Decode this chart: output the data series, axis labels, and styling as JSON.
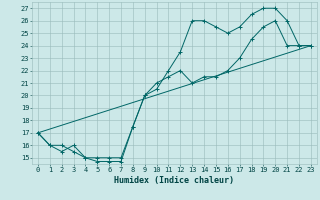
{
  "title": "",
  "xlabel": "Humidex (Indice chaleur)",
  "bg_color": "#cce8e8",
  "line_color": "#006666",
  "xlim": [
    -0.5,
    23.5
  ],
  "ylim": [
    14.5,
    27.5
  ],
  "yticks": [
    15,
    16,
    17,
    18,
    19,
    20,
    21,
    22,
    23,
    24,
    25,
    26,
    27
  ],
  "xticks": [
    0,
    1,
    2,
    3,
    4,
    5,
    6,
    7,
    8,
    9,
    10,
    11,
    12,
    13,
    14,
    15,
    16,
    17,
    18,
    19,
    20,
    21,
    22,
    23
  ],
  "series1_x": [
    0,
    1,
    2,
    3,
    4,
    5,
    6,
    7,
    8,
    9,
    10,
    11,
    12,
    13,
    14,
    15,
    16,
    17,
    18,
    19,
    20,
    21,
    22,
    23
  ],
  "series1_y": [
    17,
    16,
    15.5,
    16,
    15,
    14.7,
    14.7,
    14.7,
    17.5,
    20,
    20.5,
    22,
    23.5,
    26,
    26,
    25.5,
    25,
    25.5,
    26.5,
    27,
    27,
    26,
    24,
    24
  ],
  "series2_x": [
    0,
    1,
    2,
    3,
    4,
    5,
    6,
    7,
    8,
    9,
    10,
    11,
    12,
    13,
    14,
    15,
    16,
    17,
    18,
    19,
    20,
    21,
    22,
    23
  ],
  "series2_y": [
    17,
    16,
    16,
    15.5,
    15,
    15,
    15,
    15,
    17.5,
    20,
    21,
    21.5,
    22,
    21,
    21.5,
    21.5,
    22,
    23,
    24.5,
    25.5,
    26,
    24,
    24,
    24
  ],
  "series3_x": [
    0,
    23
  ],
  "series3_y": [
    17,
    24
  ],
  "grid_color": "#99bbbb",
  "font_color": "#004444",
  "label_fontsize": 6,
  "tick_fontsize": 5
}
